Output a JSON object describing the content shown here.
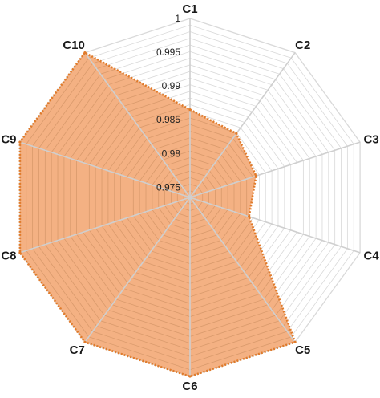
{
  "chart_data": {
    "type": "radar",
    "title": "",
    "categories": [
      "C1",
      "C2",
      "C3",
      "C4",
      "C5",
      "C6",
      "C7",
      "C8",
      "C9",
      "C10"
    ],
    "series": [
      {
        "values": [
          0.9865,
          0.9852,
          0.9838,
          0.9827,
          1.0,
          1.0,
          1.0,
          1.0,
          1.0,
          1.0
        ]
      }
    ],
    "rlim": [
      0.9735,
      1.0
    ],
    "tick_values": [
      0.975,
      0.98,
      0.985,
      0.99,
      0.995,
      1
    ],
    "tick_labels": [
      "0.975",
      "0.98",
      "0.985",
      "0.99",
      "0.995",
      "1"
    ],
    "minor_gridlines": 27,
    "grid": true,
    "legend": "none",
    "colors": {
      "fill": "#f4b183",
      "outline": "#e07b2b",
      "grid": "#d9d9d9",
      "axis": "#cfcfcf"
    }
  }
}
